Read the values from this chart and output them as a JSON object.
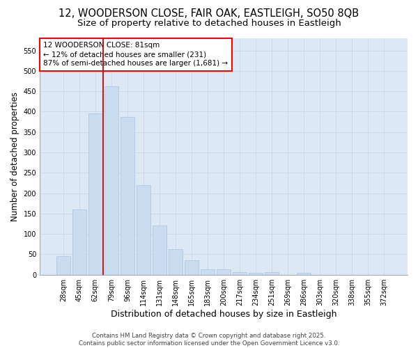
{
  "title_line1": "12, WOODERSON CLOSE, FAIR OAK, EASTLEIGH, SO50 8QB",
  "title_line2": "Size of property relative to detached houses in Eastleigh",
  "xlabel": "Distribution of detached houses by size in Eastleigh",
  "ylabel": "Number of detached properties",
  "categories": [
    "28sqm",
    "45sqm",
    "62sqm",
    "79sqm",
    "96sqm",
    "114sqm",
    "131sqm",
    "148sqm",
    "165sqm",
    "183sqm",
    "200sqm",
    "217sqm",
    "234sqm",
    "251sqm",
    "269sqm",
    "286sqm",
    "303sqm",
    "320sqm",
    "338sqm",
    "355sqm",
    "372sqm"
  ],
  "bar_values": [
    45,
    160,
    395,
    462,
    387,
    219,
    120,
    62,
    35,
    14,
    14,
    6,
    5,
    7,
    0,
    5,
    0,
    0,
    0,
    0,
    0
  ],
  "bar_color": "#c9dcf0",
  "bar_edge_color": "#b0c8e4",
  "grid_color": "#cdd8e8",
  "background_color": "#dce8f4",
  "vline_color": "#cc0000",
  "vline_pos": 2.5,
  "annotation_text_line1": "12 WOODERSON CLOSE: 81sqm",
  "annotation_text_line2": "← 12% of detached houses are smaller (231)",
  "annotation_text_line3": "87% of semi-detached houses are larger (1,681) →",
  "ylim_max": 580,
  "yticks": [
    0,
    50,
    100,
    150,
    200,
    250,
    300,
    350,
    400,
    450,
    500,
    550
  ],
  "footer_text": "Contains HM Land Registry data © Crown copyright and database right 2025.\nContains public sector information licensed under the Open Government Licence v3.0.",
  "title_fontsize": 10.5,
  "subtitle_fontsize": 9.5,
  "ylabel_fontsize": 8.5,
  "xlabel_fontsize": 9,
  "tick_fontsize": 7,
  "annotation_fontsize": 7.5,
  "footer_fontsize": 6.2
}
